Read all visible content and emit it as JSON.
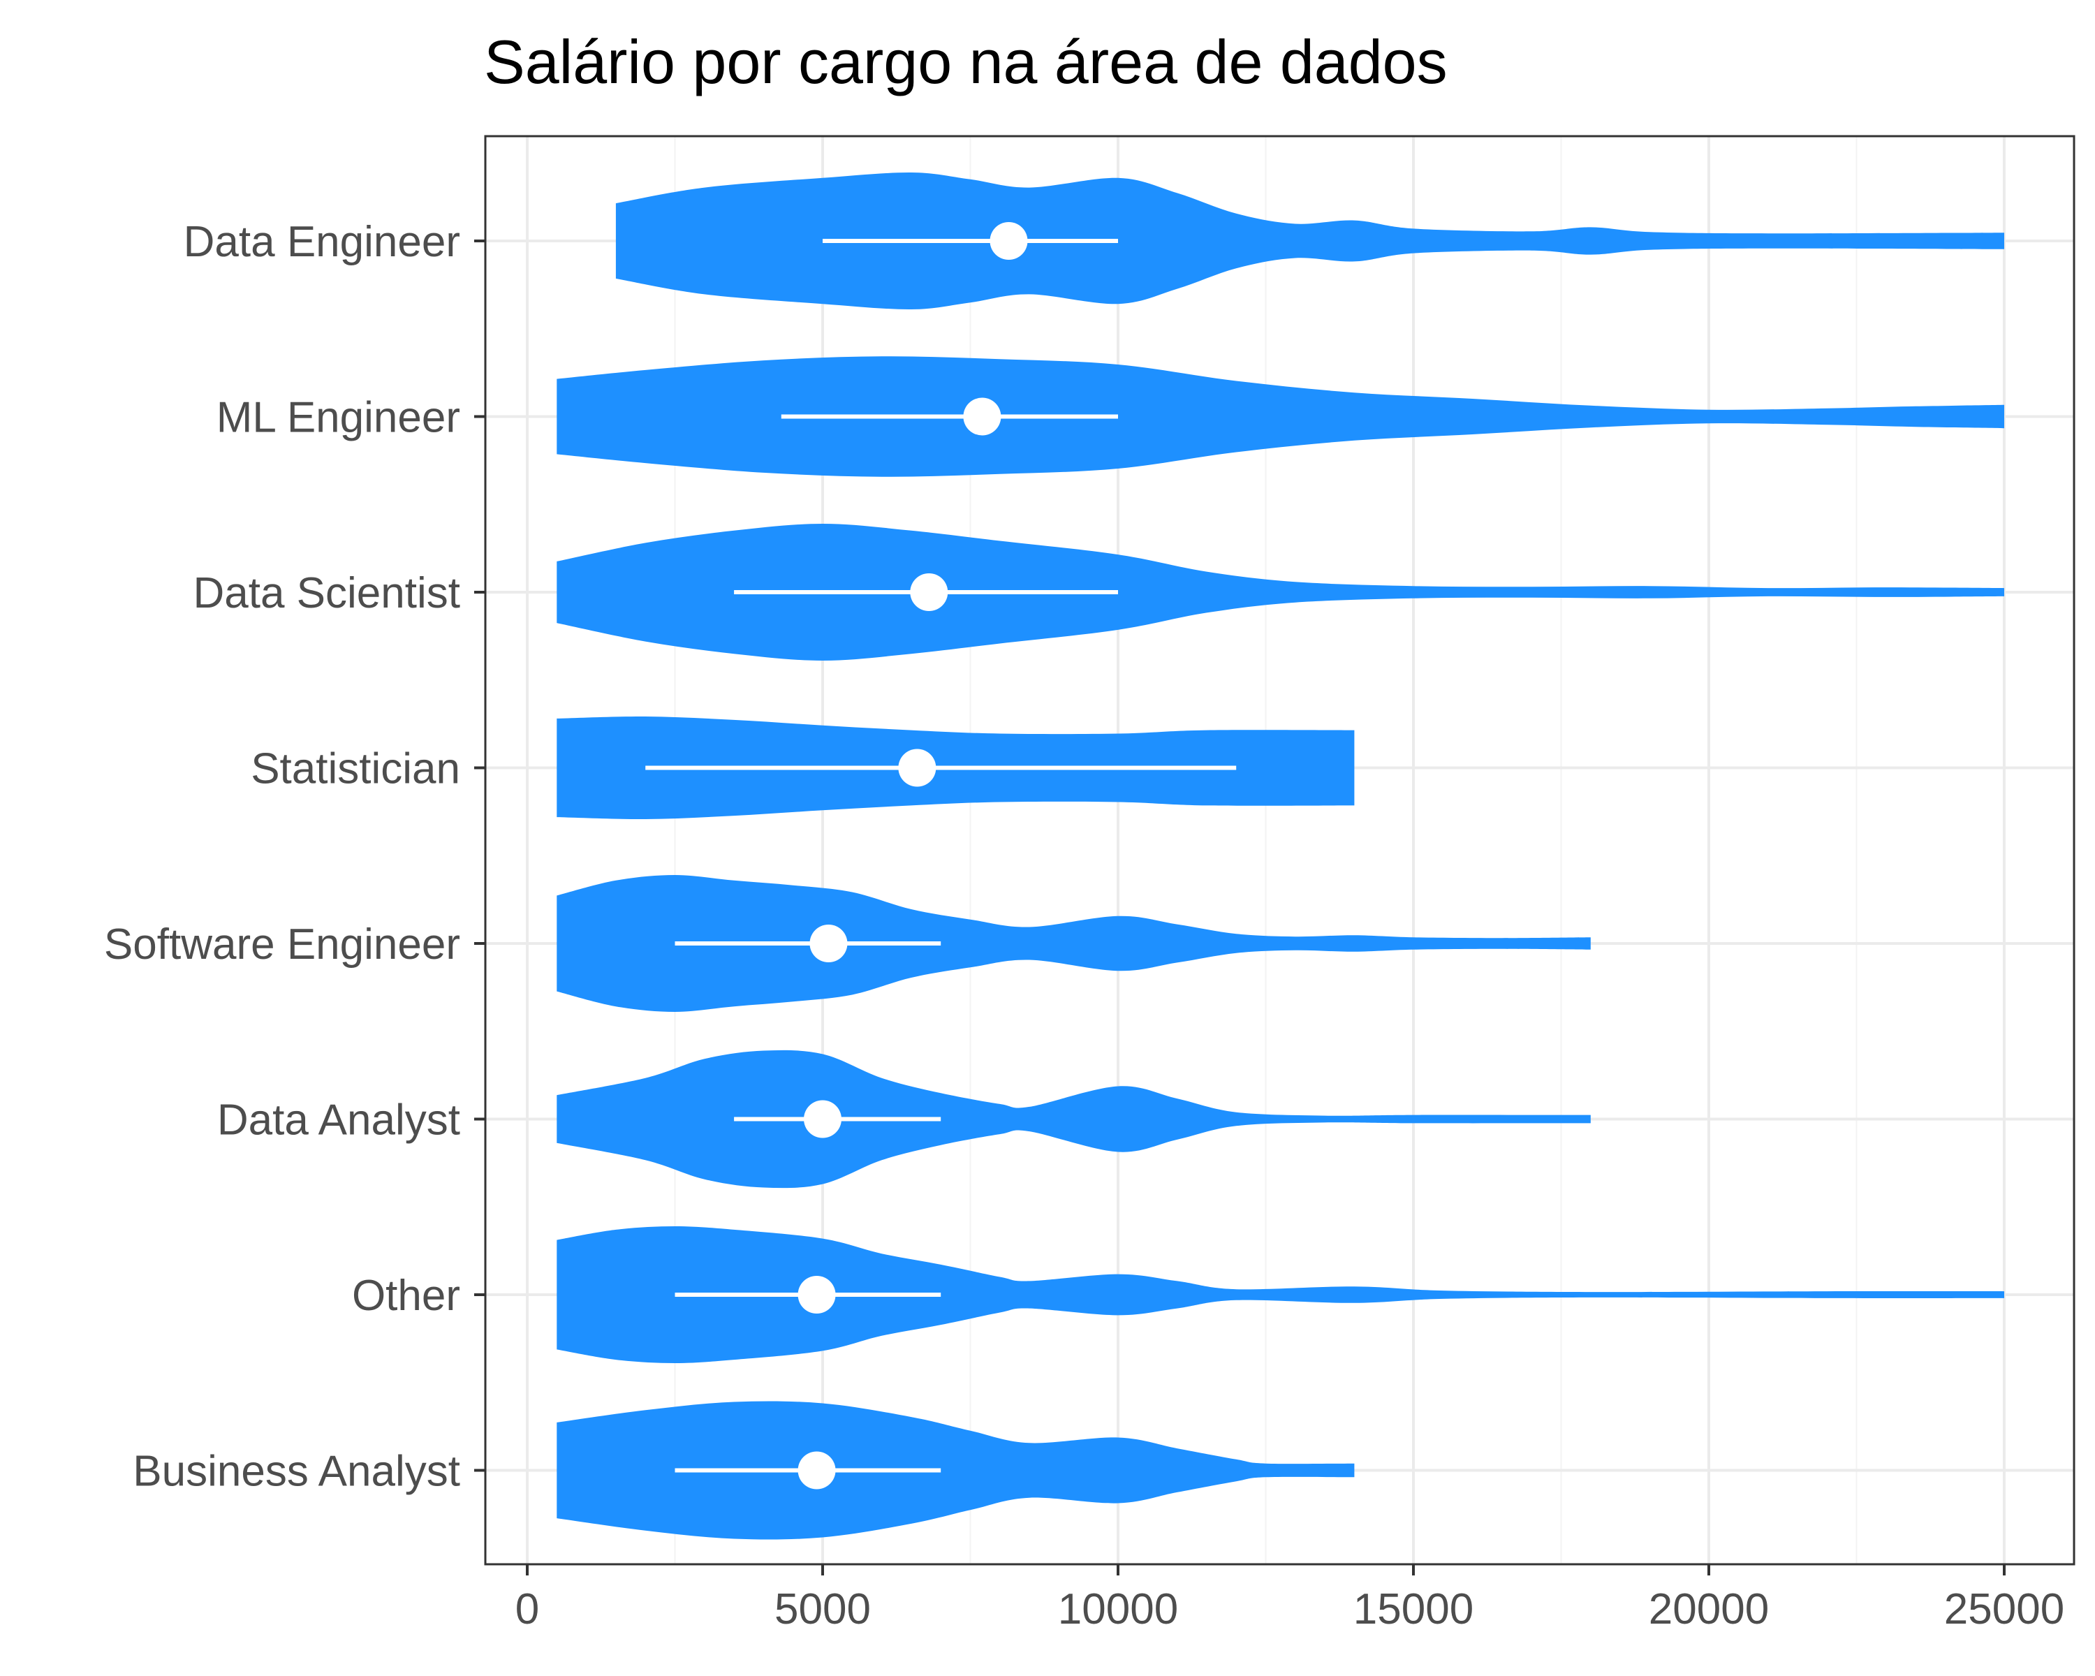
{
  "chart_data": {
    "type": "violin",
    "title": "Salário por cargo na área de dados",
    "xlabel": "",
    "ylabel": "",
    "xlim": [
      -700,
      25800
    ],
    "x_ticks": [
      0,
      5000,
      10000,
      15000,
      20000,
      25000
    ],
    "x_tick_labels": [
      "0",
      "5000",
      "10000",
      "15000",
      "20000",
      "25000"
    ],
    "grid": true,
    "legend": "none",
    "colors": {
      "fill": "#1e90ff",
      "marker": "#ffffff",
      "grid_major": "#ebebeb",
      "grid_minor": "#f3f3f3",
      "panel_border": "#333333"
    },
    "categories": [
      "Data Engineer",
      "ML Engineer",
      "Data Scientist",
      "Statistician",
      "Software Engineer",
      "Data Analyst",
      "Other",
      "Business Analyst"
    ],
    "series": [
      {
        "name": "Data Engineer",
        "range": [
          1500,
          25000
        ],
        "density": [
          [
            1500,
            0.55
          ],
          [
            3000,
            0.78
          ],
          [
            5000,
            0.92
          ],
          [
            6500,
            1.0
          ],
          [
            7500,
            0.9
          ],
          [
            8500,
            0.78
          ],
          [
            10000,
            0.92
          ],
          [
            11000,
            0.7
          ],
          [
            12000,
            0.4
          ],
          [
            13000,
            0.25
          ],
          [
            14000,
            0.3
          ],
          [
            15000,
            0.18
          ],
          [
            17000,
            0.14
          ],
          [
            18000,
            0.2
          ],
          [
            19000,
            0.13
          ],
          [
            21000,
            0.11
          ],
          [
            25000,
            0.12
          ]
        ],
        "median": 8150,
        "iqr": [
          5000,
          10000
        ]
      },
      {
        "name": "ML Engineer",
        "range": [
          500,
          25000
        ],
        "density": [
          [
            500,
            0.55
          ],
          [
            2000,
            0.68
          ],
          [
            4000,
            0.82
          ],
          [
            6000,
            0.88
          ],
          [
            8000,
            0.84
          ],
          [
            10000,
            0.76
          ],
          [
            12000,
            0.52
          ],
          [
            14000,
            0.35
          ],
          [
            16000,
            0.26
          ],
          [
            18000,
            0.16
          ],
          [
            20000,
            0.1
          ],
          [
            22000,
            0.12
          ],
          [
            23500,
            0.15
          ],
          [
            25000,
            0.17
          ]
        ],
        "median": 7700,
        "iqr": [
          4300,
          10000
        ]
      },
      {
        "name": "Data Scientist",
        "range": [
          500,
          25000
        ],
        "density": [
          [
            500,
            0.45
          ],
          [
            2000,
            0.72
          ],
          [
            3500,
            0.9
          ],
          [
            5000,
            1.0
          ],
          [
            6500,
            0.9
          ],
          [
            8000,
            0.75
          ],
          [
            10000,
            0.55
          ],
          [
            11500,
            0.3
          ],
          [
            13000,
            0.15
          ],
          [
            15000,
            0.09
          ],
          [
            17000,
            0.08
          ],
          [
            19000,
            0.09
          ],
          [
            21000,
            0.06
          ],
          [
            23000,
            0.07
          ],
          [
            25000,
            0.06
          ]
        ],
        "median": 6800,
        "iqr": [
          3500,
          10000
        ]
      },
      {
        "name": "Statistician",
        "range": [
          500,
          14000
        ],
        "density": [
          [
            500,
            0.72
          ],
          [
            2000,
            0.75
          ],
          [
            3500,
            0.7
          ],
          [
            5000,
            0.62
          ],
          [
            6500,
            0.55
          ],
          [
            8000,
            0.5
          ],
          [
            10000,
            0.5
          ],
          [
            11500,
            0.55
          ],
          [
            14000,
            0.55
          ]
        ],
        "median": 6600,
        "iqr": [
          2000,
          12000
        ]
      },
      {
        "name": "Software Engineer",
        "range": [
          500,
          18000
        ],
        "density": [
          [
            500,
            0.7
          ],
          [
            1500,
            0.92
          ],
          [
            2500,
            1.0
          ],
          [
            3500,
            0.92
          ],
          [
            4500,
            0.85
          ],
          [
            5500,
            0.75
          ],
          [
            6500,
            0.5
          ],
          [
            7500,
            0.35
          ],
          [
            8500,
            0.24
          ],
          [
            10000,
            0.4
          ],
          [
            11000,
            0.28
          ],
          [
            12000,
            0.14
          ],
          [
            13000,
            0.1
          ],
          [
            14000,
            0.12
          ],
          [
            15000,
            0.09
          ],
          [
            16500,
            0.08
          ],
          [
            18000,
            0.09
          ]
        ],
        "median": 5100,
        "iqr": [
          2500,
          7000
        ]
      },
      {
        "name": "Data Analyst",
        "range": [
          500,
          18000
        ],
        "density": [
          [
            500,
            0.35
          ],
          [
            2000,
            0.6
          ],
          [
            3000,
            0.88
          ],
          [
            4000,
            1.0
          ],
          [
            5000,
            0.95
          ],
          [
            6000,
            0.6
          ],
          [
            7000,
            0.38
          ],
          [
            8000,
            0.22
          ],
          [
            8500,
            0.18
          ],
          [
            10000,
            0.48
          ],
          [
            11000,
            0.3
          ],
          [
            12000,
            0.1
          ],
          [
            13500,
            0.05
          ],
          [
            15000,
            0.06
          ],
          [
            18000,
            0.06
          ]
        ],
        "median": 5000,
        "iqr": [
          3500,
          7000
        ]
      },
      {
        "name": "Other",
        "range": [
          500,
          25000
        ],
        "density": [
          [
            500,
            0.8
          ],
          [
            1500,
            0.95
          ],
          [
            2500,
            1.0
          ],
          [
            3500,
            0.95
          ],
          [
            5000,
            0.82
          ],
          [
            6000,
            0.6
          ],
          [
            7000,
            0.44
          ],
          [
            8000,
            0.26
          ],
          [
            8500,
            0.2
          ],
          [
            10000,
            0.3
          ],
          [
            11000,
            0.2
          ],
          [
            12000,
            0.08
          ],
          [
            14000,
            0.12
          ],
          [
            15500,
            0.06
          ],
          [
            18000,
            0.04
          ],
          [
            22000,
            0.05
          ],
          [
            25000,
            0.05
          ]
        ],
        "median": 4900,
        "iqr": [
          2500,
          7000
        ]
      },
      {
        "name": "Business Analyst",
        "range": [
          500,
          14000
        ],
        "density": [
          [
            500,
            0.7
          ],
          [
            2000,
            0.88
          ],
          [
            3500,
            1.0
          ],
          [
            5000,
            0.98
          ],
          [
            6500,
            0.78
          ],
          [
            7500,
            0.58
          ],
          [
            8500,
            0.4
          ],
          [
            10000,
            0.48
          ],
          [
            11000,
            0.32
          ],
          [
            12000,
            0.16
          ],
          [
            12500,
            0.1
          ],
          [
            14000,
            0.1
          ]
        ],
        "median": 4900,
        "iqr": [
          2500,
          7000
        ]
      }
    ]
  }
}
